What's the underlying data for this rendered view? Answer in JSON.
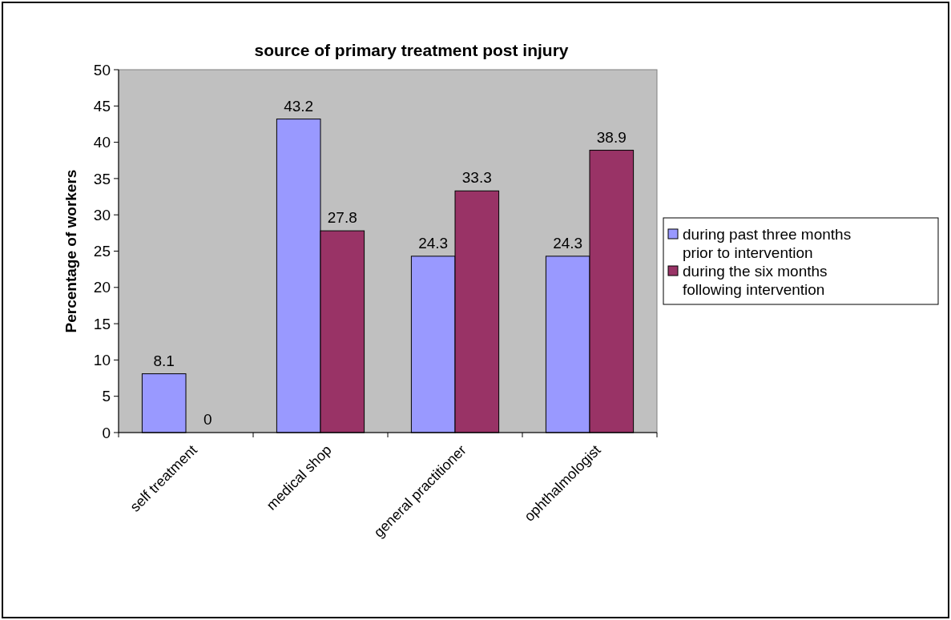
{
  "chart_data": {
    "type": "bar",
    "title": "source of primary treatment post injury",
    "ylabel": "Percentage of workers",
    "categories": [
      "self treatment",
      "medical shop",
      "general practitioner",
      "ophthalmologist"
    ],
    "series": [
      {
        "name": "during past three months prior to intervention",
        "color": "#9999ff",
        "values": [
          8.1,
          43.2,
          24.3,
          24.3
        ]
      },
      {
        "name": "during the six months following intervention",
        "color": "#993366",
        "values": [
          0,
          27.8,
          33.3,
          38.9
        ]
      }
    ],
    "ylim": [
      0,
      50
    ],
    "yticks": [
      0,
      5,
      10,
      15,
      20,
      25,
      30,
      35,
      40,
      45,
      50
    ],
    "data_labels": true,
    "legend": "right",
    "grid": false
  }
}
